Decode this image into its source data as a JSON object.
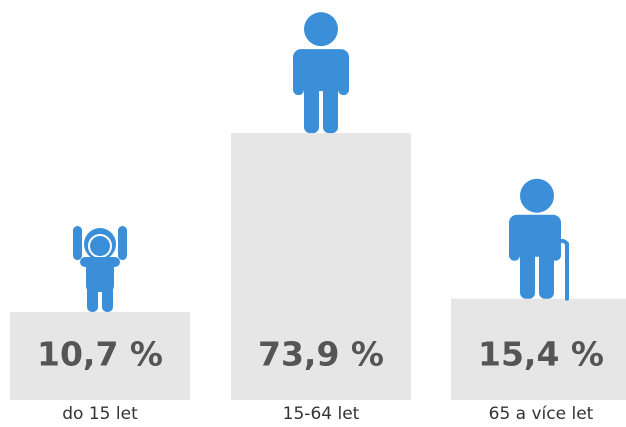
{
  "chart_data": {
    "type": "bar",
    "categories": [
      "do 15 let",
      "15-64 let",
      "65 a více let"
    ],
    "values": [
      10.7,
      73.9,
      15.4
    ],
    "value_labels": [
      "10,7 %",
      "73,9 %",
      "15,4 %"
    ],
    "color": "#e6e6e6"
  }
}
